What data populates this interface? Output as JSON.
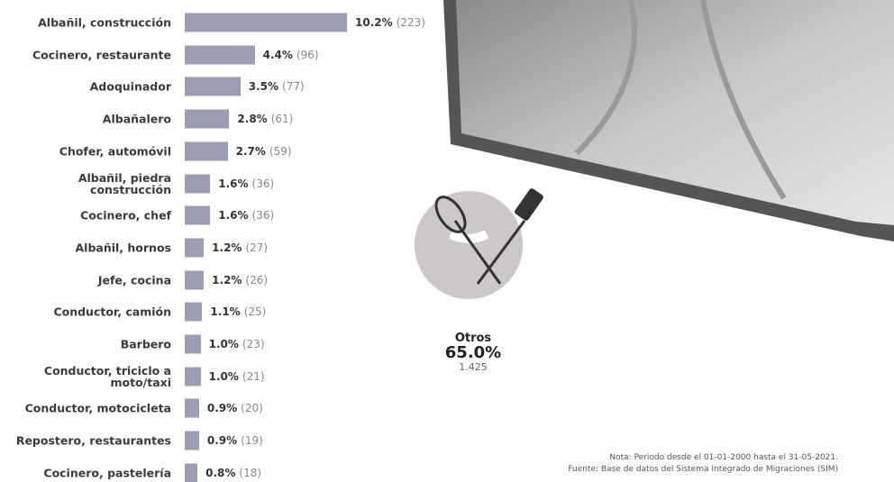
{
  "chart_data": {
    "type": "bar",
    "orientation": "horizontal",
    "categories": [
      "Albañil, construcción",
      "Cocinero, restaurante",
      "Adoquinador",
      "Albañalero",
      "Chofer, automóvil",
      "Albañil, piedra construcción",
      "Cocinero, chef",
      "Albañil, hornos",
      "Jefe, cocina",
      "Conductor, camión",
      "Barbero",
      "Conductor, triciclo a moto/taxi",
      "Conductor, motocicleta",
      "Repostero, restaurantes",
      "Cocinero, pastelería"
    ],
    "values": [
      10.2,
      4.4,
      3.5,
      2.8,
      2.7,
      1.6,
      1.6,
      1.2,
      1.2,
      1.1,
      1.0,
      1.0,
      0.9,
      0.9,
      0.8
    ],
    "value_labels": [
      "10.2%",
      "4.4%",
      "3.5%",
      "2.8%",
      "2.7%",
      "1.6%",
      "1.6%",
      "1.2%",
      "1.2%",
      "1.1%",
      "1.0%",
      "1.0%",
      "0.9%",
      "0.9%",
      "0.8%"
    ],
    "count_labels": [
      "(223)",
      "(96)",
      "(77)",
      "(61)",
      "(59)",
      "(36)",
      "(36)",
      "(27)",
      "(26)",
      "(25)",
      "(23)",
      "(21)",
      "(20)",
      "(19)",
      "(18)"
    ],
    "color": "#9c9db3",
    "others": {
      "label": "Otros",
      "percent": "65.0%",
      "count": "1.425"
    },
    "note": "Nota: Periodo desde el 01-01-2000 hasta el 31-05-2021.",
    "source": "Fuente: Base de datos del Sistema Integrado de Migraciones (SIM)"
  }
}
